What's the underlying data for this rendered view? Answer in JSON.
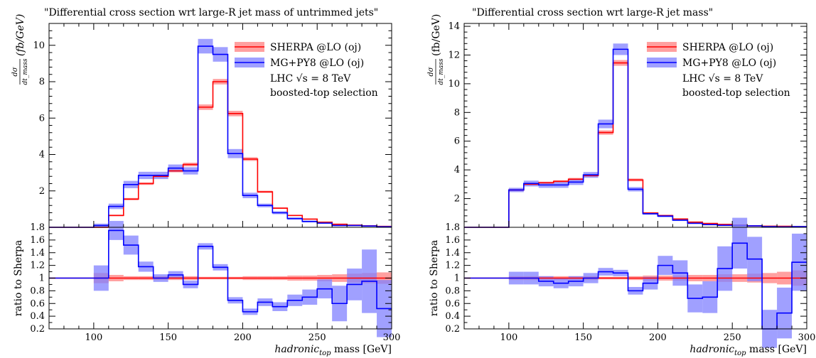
{
  "chart_data": [
    {
      "type": "line",
      "title": "\"Differential cross section wrt large-R jet mass of untrimmed jets\"",
      "ylabel": "dσ/dt_mass (fb/GeV)",
      "ylabel_main": "(fb/GeV)",
      "ylabel_frac_num": "dσ",
      "ylabel_frac_den": "dt_mass",
      "ratio_ylabel": "ratio to Sherpa",
      "xlabel": "hadronic_top mass [GeV]",
      "xlabel_main": "hadronic",
      "xlabel_sub": "top",
      "xlabel_unit": " mass [GeV]",
      "xlim": [
        70,
        300
      ],
      "ylim": [
        0,
        11.2
      ],
      "ratio_ylim": [
        0.2,
        1.8
      ],
      "xticks": [
        100,
        150,
        200,
        250,
        300
      ],
      "yticks": [
        2,
        4,
        6,
        8,
        10
      ],
      "ratio_yticks": [
        0.2,
        0.4,
        0.6,
        0.8,
        1,
        1.2,
        1.4,
        1.6,
        1.8
      ],
      "bin_edges": [
        100,
        110,
        120,
        130,
        140,
        150,
        160,
        170,
        180,
        190,
        200,
        210,
        220,
        230,
        240,
        250,
        260,
        270,
        280,
        290,
        300
      ],
      "series": [
        {
          "name": "SHERPA @LO (oj)",
          "color": "#ff0000",
          "band_color": "#ff8080",
          "values": [
            0.0,
            0.65,
            1.55,
            2.4,
            2.8,
            3.1,
            3.45,
            6.6,
            8.0,
            6.25,
            3.75,
            1.95,
            1.05,
            0.65,
            0.45,
            0.28,
            0.17,
            0.12,
            0.08,
            0.05
          ],
          "err": [
            0.02,
            0.04,
            0.06,
            0.07,
            0.08,
            0.08,
            0.1,
            0.15,
            0.15,
            0.15,
            0.1,
            0.06,
            0.04,
            0.03,
            0.02,
            0.02,
            0.02,
            0.01,
            0.01,
            0.01
          ]
        },
        {
          "name": "MG+PY8 @LO (oj)",
          "color": "#0000ff",
          "band_color": "#8080ff",
          "values": [
            0.1,
            1.15,
            2.35,
            2.85,
            2.85,
            3.25,
            3.1,
            9.95,
            9.5,
            4.05,
            1.75,
            1.2,
            0.8,
            0.48,
            0.32,
            0.23,
            0.1,
            0.1,
            0.07,
            0.03
          ],
          "err": [
            0.1,
            0.15,
            0.2,
            0.2,
            0.2,
            0.2,
            0.2,
            0.4,
            0.4,
            0.25,
            0.15,
            0.1,
            0.08,
            0.06,
            0.05,
            0.04,
            0.03,
            0.03,
            0.03,
            0.02
          ]
        }
      ],
      "ratio": {
        "reference_value": 1,
        "series": [
          {
            "name": "SHERPA @LO (oj)",
            "values": [
              1,
              1,
              1,
              1,
              1,
              1,
              1,
              1,
              1,
              1,
              1,
              1,
              1,
              1,
              1,
              1,
              1,
              1,
              1,
              1
            ],
            "err": [
              0.08,
              0.05,
              0.03,
              0.03,
              0.03,
              0.03,
              0.03,
              0.02,
              0.02,
              0.02,
              0.03,
              0.03,
              0.03,
              0.04,
              0.04,
              0.05,
              0.06,
              0.07,
              0.08,
              0.09
            ]
          },
          {
            "name": "MG+PY8 @LO (oj)",
            "values": [
              1.0,
              1.75,
              1.52,
              1.18,
              1.0,
              1.05,
              0.9,
              1.5,
              1.17,
              0.65,
              0.47,
              0.62,
              0.55,
              0.65,
              0.7,
              0.83,
              0.6,
              0.9,
              0.95,
              0.52
            ],
            "err": [
              0.2,
              0.15,
              0.15,
              0.08,
              0.06,
              0.06,
              0.06,
              0.05,
              0.05,
              0.05,
              0.05,
              0.06,
              0.07,
              0.09,
              0.12,
              0.15,
              0.28,
              0.25,
              0.5,
              0.45
            ]
          }
        ]
      },
      "legend": {
        "position": "top-right",
        "entries": [
          "SHERPA @LO (oj)",
          "MG+PY8 @LO (oj)"
        ],
        "lines": [
          "LHC √s = 8 TeV",
          "boosted-top selection"
        ]
      }
    },
    {
      "type": "line",
      "title": "\"Differential cross section wrt large-R jet mass\"",
      "ylabel": "dσ/dt_mass (fb/GeV)",
      "ylabel_main": "(fb/GeV)",
      "ylabel_frac_num": "dσ",
      "ylabel_frac_den": "dt_mass",
      "ratio_ylabel": "ratio to Sherpa",
      "xlabel": "hadronic_top mass [GeV]",
      "xlabel_main": "hadronic",
      "xlabel_sub": "top",
      "xlabel_unit": " mass [GeV]",
      "xlim": [
        70,
        300
      ],
      "ylim": [
        0,
        14.2
      ],
      "ratio_ylim": [
        0.2,
        1.8
      ],
      "xticks": [
        100,
        150,
        200,
        250,
        300
      ],
      "yticks": [
        2,
        4,
        6,
        8,
        10,
        12,
        14
      ],
      "ratio_yticks": [
        0.2,
        0.4,
        0.6,
        0.8,
        1,
        1.2,
        1.4,
        1.6,
        1.8
      ],
      "bin_edges": [
        100,
        110,
        120,
        130,
        140,
        150,
        160,
        170,
        180,
        190,
        200,
        210,
        220,
        230,
        240,
        250,
        260,
        270,
        280,
        290,
        300
      ],
      "series": [
        {
          "name": "SHERPA @LO (oj)",
          "color": "#ff0000",
          "band_color": "#ff8080",
          "values": [
            2.6,
            3.0,
            3.1,
            3.2,
            3.35,
            3.6,
            6.6,
            11.45,
            3.3,
            1.0,
            0.82,
            0.58,
            0.36,
            0.27,
            0.2,
            0.15,
            0.1,
            0.08,
            0.07,
            0.05
          ],
          "err": [
            0.08,
            0.08,
            0.08,
            0.08,
            0.09,
            0.1,
            0.15,
            0.2,
            0.1,
            0.04,
            0.03,
            0.03,
            0.02,
            0.02,
            0.02,
            0.02,
            0.01,
            0.01,
            0.01,
            0.01
          ],
          "start_baseline": true
        },
        {
          "name": "MG+PY8 @LO (oj)",
          "color": "#0000ff",
          "band_color": "#8080ff",
          "values": [
            2.6,
            3.05,
            2.95,
            2.95,
            3.15,
            3.65,
            7.2,
            12.4,
            2.65,
            0.95,
            0.78,
            0.5,
            0.28,
            0.19,
            0.14,
            0.13,
            0.1,
            0.05,
            0.03,
            0.05
          ],
          "err": [
            0.15,
            0.2,
            0.2,
            0.2,
            0.2,
            0.2,
            0.3,
            0.4,
            0.15,
            0.08,
            0.08,
            0.06,
            0.05,
            0.05,
            0.04,
            0.04,
            0.04,
            0.03,
            0.03,
            0.03
          ],
          "start_baseline": true
        }
      ],
      "ratio": {
        "reference_value": 1,
        "series": [
          {
            "name": "SHERPA @LO (oj)",
            "values": [
              1,
              1,
              1,
              1,
              1,
              1,
              1,
              1,
              1,
              1,
              1,
              1,
              1,
              1,
              1,
              1,
              1,
              1,
              1,
              1
            ],
            "err": [
              0.03,
              0.03,
              0.03,
              0.03,
              0.03,
              0.03,
              0.02,
              0.02,
              0.03,
              0.04,
              0.04,
              0.04,
              0.05,
              0.05,
              0.06,
              0.06,
              0.07,
              0.08,
              0.1,
              0.12
            ],
            "start_baseline": true
          },
          {
            "name": "MG+PY8 @LO (oj)",
            "values": [
              1.0,
              1.0,
              0.95,
              0.92,
              0.95,
              1.0,
              1.1,
              1.08,
              0.8,
              0.92,
              1.2,
              1.08,
              0.68,
              0.7,
              1.15,
              1.55,
              1.3,
              0.2,
              0.45,
              1.25
            ],
            "err": [
              0.1,
              0.1,
              0.08,
              0.08,
              0.08,
              0.08,
              0.06,
              0.05,
              0.06,
              0.1,
              0.15,
              0.2,
              0.22,
              0.25,
              0.35,
              0.4,
              0.35,
              0.3,
              0.4,
              0.45
            ],
            "start_baseline": true
          }
        ]
      },
      "legend": {
        "position": "top-right",
        "entries": [
          "SHERPA @LO (oj)",
          "MG+PY8 @LO (oj)"
        ],
        "lines": [
          "LHC √s = 8 TeV",
          "boosted-top selection"
        ]
      }
    }
  ]
}
